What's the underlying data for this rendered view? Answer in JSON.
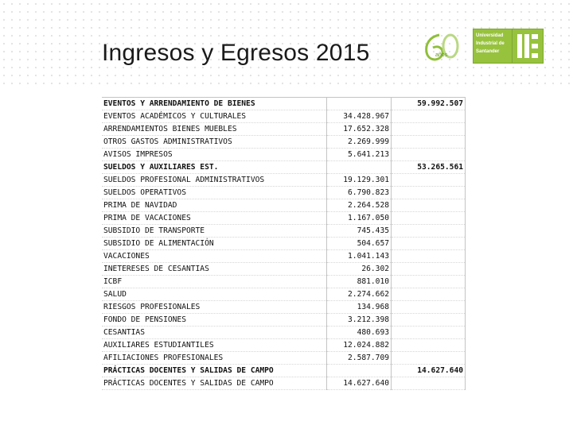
{
  "header": {
    "title": "Ingresos y Egresos 2015"
  },
  "logos": {
    "sixty_text": "años",
    "uis_lines": [
      "Universidad",
      "Industrial de",
      "Santander"
    ]
  },
  "colors": {
    "brand_green": "#97c23d",
    "text": "#111111"
  },
  "table": {
    "rows": [
      {
        "label": "EVENTOS Y ARRENDAMIENTO DE BIENES",
        "value": "",
        "total": "59.992.507",
        "heading": true
      },
      {
        "label": "EVENTOS ACADÉMICOS Y CULTURALES",
        "value": "34.428.967",
        "total": "",
        "heading": false
      },
      {
        "label": "ARRENDAMIENTOS BIENES MUEBLES",
        "value": "17.652.328",
        "total": "",
        "heading": false
      },
      {
        "label": "OTROS GASTOS ADMINISTRATIVOS",
        "value": "2.269.999",
        "total": "",
        "heading": false
      },
      {
        "label": "AVISOS IMPRESOS",
        "value": "5.641.213",
        "total": "",
        "heading": false
      },
      {
        "label": "SUELDOS Y AUXILIARES EST.",
        "value": "",
        "total": "53.265.561",
        "heading": true
      },
      {
        "label": "SUELDOS PROFESIONAL ADMINISTRATIVOS",
        "value": "19.129.301",
        "total": "",
        "heading": false
      },
      {
        "label": "SUELDOS OPERATIVOS",
        "value": "6.790.823",
        "total": "",
        "heading": false
      },
      {
        "label": "PRIMA DE NAVIDAD",
        "value": "2.264.528",
        "total": "",
        "heading": false
      },
      {
        "label": "PRIMA DE VACACIONES",
        "value": "1.167.050",
        "total": "",
        "heading": false
      },
      {
        "label": "SUBSIDIO DE TRANSPORTE",
        "value": "745.435",
        "total": "",
        "heading": false
      },
      {
        "label": "SUBSIDIO DE ALIMENTACIÓN",
        "value": "504.657",
        "total": "",
        "heading": false
      },
      {
        "label": "VACACIONES",
        "value": "1.041.143",
        "total": "",
        "heading": false
      },
      {
        "label": "INETERESES DE CESANTIAS",
        "value": "26.302",
        "total": "",
        "heading": false
      },
      {
        "label": "ICBF",
        "value": "881.010",
        "total": "",
        "heading": false
      },
      {
        "label": "SALUD",
        "value": "2.274.662",
        "total": "",
        "heading": false
      },
      {
        "label": "RIESGOS PROFESIONALES",
        "value": "134.968",
        "total": "",
        "heading": false
      },
      {
        "label": "FONDO DE PENSIONES",
        "value": "3.212.398",
        "total": "",
        "heading": false
      },
      {
        "label": "CESANTIAS",
        "value": "480.693",
        "total": "",
        "heading": false
      },
      {
        "label": "AUXILIARES ESTUDIANTILES",
        "value": "12.024.882",
        "total": "",
        "heading": false
      },
      {
        "label": "AFILIACIONES PROFESIONALES",
        "value": "2.587.709",
        "total": "",
        "heading": false
      },
      {
        "label": "PRÁCTICAS DOCENTES Y SALIDAS DE CAMPO",
        "value": "",
        "total": "14.627.640",
        "heading": true
      },
      {
        "label": "PRÁCTICAS DOCENTES Y SALIDAS DE CAMPO",
        "value": "14.627.640",
        "total": "",
        "heading": false
      }
    ]
  }
}
